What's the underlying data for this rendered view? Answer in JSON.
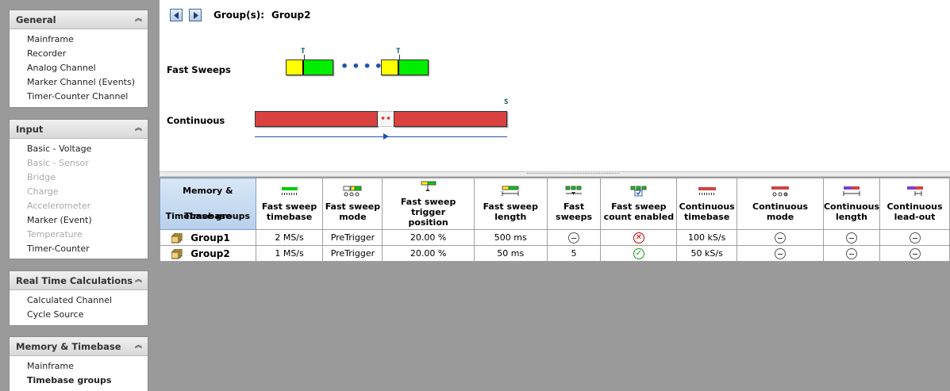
{
  "sidebar": {
    "panels": [
      {
        "title": "General",
        "items": [
          "Mainframe",
          "Recorder",
          "Analog Channel",
          "Marker Channel (Events)",
          "Timer-Counter Channel"
        ]
      },
      {
        "title": "Input",
        "items": [
          "Basic - Voltage",
          "Basic - Sensor",
          "Bridge",
          "Charge",
          "Accelerometer",
          "Marker (Event)",
          "Temperature",
          "Timer-Counter"
        ]
      },
      {
        "title": "Real Time Calculations",
        "items": [
          "Calculated Channel",
          "Cycle Source"
        ]
      },
      {
        "title": "Memory & Timebase",
        "items": [
          "Mainframe",
          "Timebase groups"
        ]
      }
    ]
  },
  "header": {
    "groups_label": "Group(s):",
    "group_name": "Group2"
  },
  "diagram": {
    "fast_sweeps_label": "Fast Sweeps",
    "continuous_label": "Continuous",
    "trigger_marker": "T",
    "stop_marker": "S"
  },
  "table": {
    "corner_top": "Memory & Timebase",
    "corner_bottom": "Timebase groups",
    "columns": [
      {
        "l1": "Fast sweep",
        "l2": "timebase"
      },
      {
        "l1": "Fast sweep",
        "l2": "mode"
      },
      {
        "l1": "Fast sweep trigger",
        "l2": "position"
      },
      {
        "l1": "Fast sweep",
        "l2": "length"
      },
      {
        "l1": "Fast",
        "l2": "sweeps"
      },
      {
        "l1": "Fast sweep",
        "l2": "count enabled"
      },
      {
        "l1": "Continuous",
        "l2": "timebase"
      },
      {
        "l1": "Continuous mode",
        "l2": ""
      },
      {
        "l1": "Continuous",
        "l2": "length"
      },
      {
        "l1": "Continuous",
        "l2": "lead-out"
      }
    ],
    "rows": [
      {
        "name": "Group1",
        "timebase": "2 MS/s",
        "mode": "PreTrigger",
        "trigger_position": "20.00 %",
        "length": "500 ms",
        "sweeps": "",
        "count_enabled": "no",
        "cont_timebase": "100 kS/s"
      },
      {
        "name": "Group2",
        "timebase": "1 MS/s",
        "mode": "PreTrigger",
        "trigger_position": "20.00 %",
        "length": "50 ms",
        "sweeps": "5",
        "count_enabled": "yes",
        "cont_timebase": "50 kS/s"
      }
    ]
  },
  "colors": {
    "sweep_pretrigger": "#ffff00",
    "sweep_posttrigger": "#00ee00",
    "continuous": "#d94040",
    "selection": "#b8d0ec"
  }
}
